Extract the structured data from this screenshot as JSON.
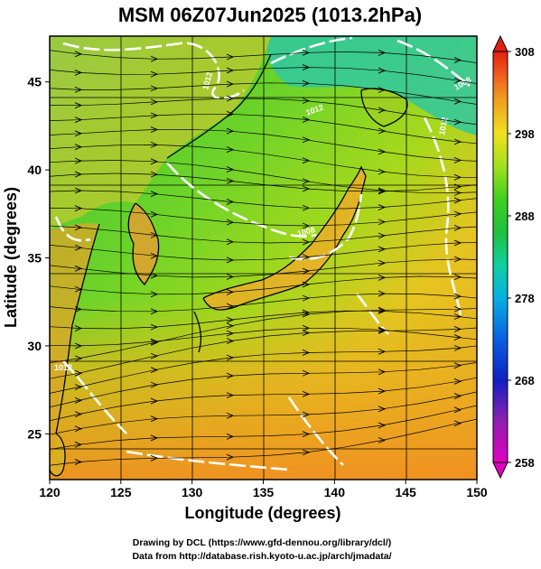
{
  "title": "MSM 06Z07Jun2025 (1013.2hPa)",
  "map": {
    "x_axis": {
      "label": "Longitude (degrees)",
      "range": [
        120,
        150
      ],
      "ticks": [
        120,
        125,
        130,
        135,
        140,
        145,
        150
      ],
      "tick_labels": [
        "120",
        "125",
        "130",
        "135",
        "140",
        "145",
        "150"
      ]
    },
    "y_axis": {
      "label": "Latitude  (degrees)",
      "range": [
        22.4,
        47.6
      ],
      "ticks": [
        25,
        30,
        35,
        40,
        45
      ],
      "tick_labels": [
        "25",
        "30",
        "35",
        "40",
        "45"
      ]
    },
    "grid": true,
    "field": "temperature shading with streamlines, white isobar contours",
    "contour_labels": [
      "1012",
      "1012",
      "1008",
      "1012",
      "1008",
      "1012"
    ]
  },
  "colorbar": {
    "range": [
      258,
      308
    ],
    "ticks": [
      258,
      268,
      278,
      288,
      298,
      308
    ],
    "tick_labels": [
      "258",
      "268",
      "278",
      "288",
      "298",
      "308"
    ],
    "stops": [
      "#e000c0",
      "#9020b0",
      "#1020c0",
      "#0a60e0",
      "#08b0e0",
      "#10d0a0",
      "#20c040",
      "#40d020",
      "#a0e020",
      "#f0e020",
      "#f0a020",
      "#f06020",
      "#e02010"
    ]
  },
  "credits": {
    "line1": "Drawing by DCL (https://www.gfd-dennou.org/library/dcl/)",
    "line2": "Data from http://database.rish.kyoto-u.ac.jp/arch/jmadata/"
  }
}
